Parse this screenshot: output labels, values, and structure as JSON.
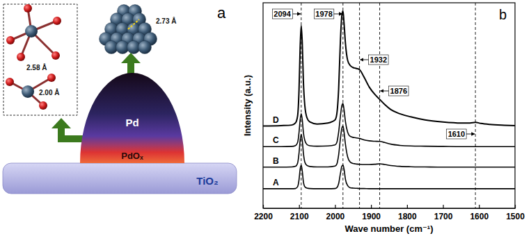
{
  "diagram": {
    "label": "a",
    "distances": [
      "2.58 Å",
      "2.00 Å",
      "2.73 Å"
    ],
    "layers": [
      "Pd",
      "PdOₓ",
      "TiO₂"
    ]
  },
  "chart_data": {
    "type": "line",
    "panel_label": "b",
    "x_label": "Wave number (cm⁻¹)",
    "y_label": "Intensity (a.u.)",
    "x": [
      2200,
      2150,
      2120,
      2110,
      2104,
      2100,
      2097,
      2094,
      2091,
      2088,
      2084,
      2078,
      2070,
      2050,
      2020,
      2000,
      1995,
      1990,
      1985,
      1981,
      1978,
      1975,
      1971,
      1965,
      1958,
      1950,
      1940,
      1932,
      1920,
      1905,
      1890,
      1876,
      1862,
      1845,
      1820,
      1790,
      1750,
      1700,
      1650,
      1625,
      1610,
      1595,
      1570,
      1530,
      1500
    ],
    "series": [
      {
        "name": "A",
        "color": "#000000",
        "values": [
          9.5,
          9.5,
          9.5,
          9.6,
          10.5,
          14,
          19,
          21,
          18,
          13,
          10.5,
          9.8,
          9.6,
          9.5,
          9.5,
          9.6,
          10,
          12,
          17,
          20.5,
          21,
          19,
          14,
          11,
          10,
          9.8,
          9.7,
          9.6,
          9.6,
          9.5,
          9.5,
          9.5,
          9.5,
          9.5,
          9.5,
          9.5,
          9.5,
          9.5,
          9.5,
          9.5,
          9.5,
          9.5,
          9.5,
          9.5,
          9.5
        ]
      },
      {
        "name": "B",
        "color": "#000000",
        "values": [
          20,
          20,
          20.1,
          20.4,
          22,
          27,
          33,
          36,
          33,
          27,
          22.5,
          20.8,
          20.3,
          20.1,
          20.1,
          20.5,
          21.5,
          26,
          34,
          39,
          40,
          37,
          31,
          25,
          22.5,
          21.8,
          21.5,
          21.4,
          21.3,
          21.3,
          21.4,
          21.6,
          21.3,
          20.8,
          20.4,
          20.2,
          20.1,
          20,
          20,
          20,
          20,
          20,
          20,
          20,
          20
        ]
      },
      {
        "name": "C",
        "color": "#000000",
        "values": [
          30,
          30,
          30.1,
          30.5,
          32,
          37,
          43,
          46,
          43,
          37,
          33,
          31,
          30.4,
          30.2,
          30.3,
          30.8,
          32,
          37,
          45,
          50,
          51,
          48,
          42,
          37,
          35,
          34.5,
          34.2,
          34,
          33.3,
          32.8,
          32.6,
          32.5,
          32,
          31.2,
          30.6,
          30.3,
          30.2,
          30.1,
          30,
          30,
          30,
          30,
          30,
          30,
          30
        ]
      },
      {
        "name": "D",
        "color": "#000000",
        "values": [
          40,
          40.2,
          40.5,
          41.5,
          45,
          58,
          78,
          89,
          80,
          62,
          50,
          44,
          42,
          41,
          41.5,
          43,
          46,
          58,
          82,
          94,
          96,
          90,
          80,
          72,
          69.5,
          68.5,
          68,
          67.5,
          64,
          59,
          55.5,
          53,
          50.5,
          48,
          46,
          44.5,
          43,
          42,
          41.5,
          41.5,
          41.8,
          41.3,
          40.8,
          40.4,
          40.2
        ]
      }
    ],
    "xlim": [
      2200,
      1500
    ],
    "xticks": [
      2200,
      2100,
      2000,
      1900,
      1800,
      1700,
      1600,
      1500
    ],
    "ylim": [
      0,
      100
    ],
    "tick_labels": "x",
    "annotations": [
      {
        "x": 2094,
        "text": "2094"
      },
      {
        "x": 1978,
        "text": "1978"
      },
      {
        "x": 1932,
        "text": "1932"
      },
      {
        "x": 1876,
        "text": "1876"
      },
      {
        "x": 1610,
        "text": "1610"
      }
    ]
  }
}
